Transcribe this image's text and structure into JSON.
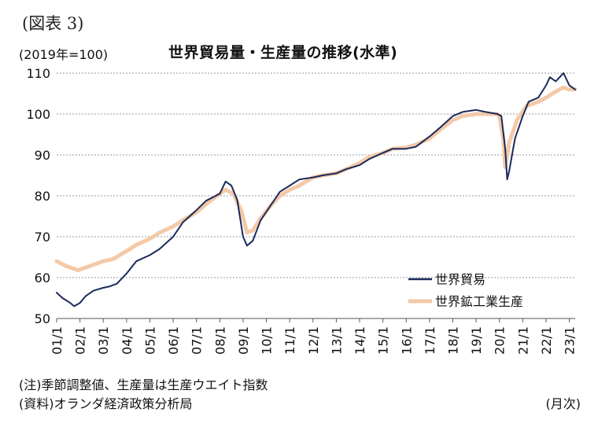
{
  "figure_label": "(図表 3)",
  "unit_label": "(2019年=100)",
  "frequency_label": "(月次)",
  "notes": [
    "(注)季節調整値、生産量は生産ウエイト指数",
    "(資料)オランダ経済政策分析局"
  ],
  "chart_data": {
    "type": "line",
    "title": "世界貿易量・生産量の推移(水準)",
    "ylim": [
      50,
      110
    ],
    "yticks": [
      50,
      60,
      70,
      80,
      90,
      100,
      110
    ],
    "grid": "horizontal-dashed",
    "legend_position": "bottom-right",
    "xlim": [
      "2001-01",
      "2023-04"
    ],
    "x_tick_labels": [
      "01/1",
      "02/1",
      "03/1",
      "04/1",
      "05/1",
      "06/1",
      "07/1",
      "08/1",
      "09/1",
      "10/1",
      "11/1",
      "12/1",
      "13/1",
      "14/1",
      "15/1",
      "16/1",
      "17/1",
      "18/1",
      "19/1",
      "20/1",
      "21/1",
      "22/1",
      "23/1"
    ],
    "series": [
      {
        "name": "世界貿易",
        "color": "#1b2a5c",
        "points": [
          [
            "2001-01",
            56.3
          ],
          [
            "2001-04",
            55
          ],
          [
            "2001-08",
            53.8
          ],
          [
            "2001-10",
            53
          ],
          [
            "2002-01",
            53.8
          ],
          [
            "2002-04",
            55.5
          ],
          [
            "2002-08",
            56.8
          ],
          [
            "2003-01",
            57.5
          ],
          [
            "2003-04",
            57.8
          ],
          [
            "2003-08",
            58.5
          ],
          [
            "2004-01",
            61
          ],
          [
            "2004-06",
            64
          ],
          [
            "2005-01",
            65.5
          ],
          [
            "2005-06",
            67
          ],
          [
            "2006-01",
            70
          ],
          [
            "2006-06",
            73.5
          ],
          [
            "2007-01",
            76.5
          ],
          [
            "2007-06",
            78.8
          ],
          [
            "2008-01",
            80.5
          ],
          [
            "2008-04",
            83.5
          ],
          [
            "2008-07",
            82.5
          ],
          [
            "2008-10",
            79
          ],
          [
            "2009-01",
            70
          ],
          [
            "2009-03",
            67.8
          ],
          [
            "2009-06",
            69
          ],
          [
            "2009-10",
            74
          ],
          [
            "2010-03",
            77.5
          ],
          [
            "2010-08",
            81
          ],
          [
            "2011-01",
            82.5
          ],
          [
            "2011-06",
            84
          ],
          [
            "2012-01",
            84.5
          ],
          [
            "2012-06",
            85
          ],
          [
            "2013-01",
            85.5
          ],
          [
            "2013-06",
            86.5
          ],
          [
            "2014-01",
            87.5
          ],
          [
            "2014-06",
            89
          ],
          [
            "2015-01",
            90.5
          ],
          [
            "2015-06",
            91.5
          ],
          [
            "2016-01",
            91.5
          ],
          [
            "2016-06",
            92
          ],
          [
            "2017-01",
            94.5
          ],
          [
            "2017-06",
            96.5
          ],
          [
            "2018-01",
            99.5
          ],
          [
            "2018-06",
            100.5
          ],
          [
            "2019-01",
            101
          ],
          [
            "2019-06",
            100.5
          ],
          [
            "2019-12",
            100
          ],
          [
            "2020-02",
            99.5
          ],
          [
            "2020-04",
            91.5
          ],
          [
            "2020-05",
            84
          ],
          [
            "2020-06",
            86
          ],
          [
            "2020-09",
            94
          ],
          [
            "2021-01",
            99.5
          ],
          [
            "2021-04",
            103
          ],
          [
            "2021-09",
            104
          ],
          [
            "2022-01",
            107
          ],
          [
            "2022-03",
            109
          ],
          [
            "2022-06",
            108
          ],
          [
            "2022-10",
            110
          ],
          [
            "2023-01",
            107
          ],
          [
            "2023-04",
            106
          ]
        ]
      },
      {
        "name": "世界鉱工業生産",
        "color": "#f3c9a8",
        "points": [
          [
            "2001-01",
            64
          ],
          [
            "2001-06",
            62.8
          ],
          [
            "2001-12",
            61.8
          ],
          [
            "2002-06",
            62.8
          ],
          [
            "2003-01",
            64
          ],
          [
            "2003-06",
            64.5
          ],
          [
            "2004-01",
            66.5
          ],
          [
            "2004-06",
            68
          ],
          [
            "2005-01",
            69.5
          ],
          [
            "2005-06",
            71
          ],
          [
            "2006-01",
            72.5
          ],
          [
            "2006-06",
            74
          ],
          [
            "2007-01",
            76
          ],
          [
            "2007-06",
            78
          ],
          [
            "2008-01",
            80.5
          ],
          [
            "2008-04",
            81.5
          ],
          [
            "2008-08",
            80.5
          ],
          [
            "2008-12",
            76.5
          ],
          [
            "2009-03",
            71
          ],
          [
            "2009-06",
            71.5
          ],
          [
            "2009-10",
            74.5
          ],
          [
            "2010-03",
            77.5
          ],
          [
            "2010-08",
            80
          ],
          [
            "2011-01",
            81.5
          ],
          [
            "2011-06",
            82.5
          ],
          [
            "2012-01",
            84.5
          ],
          [
            "2012-06",
            85
          ],
          [
            "2013-01",
            85.5
          ],
          [
            "2013-06",
            86.5
          ],
          [
            "2014-01",
            88
          ],
          [
            "2014-06",
            89.5
          ],
          [
            "2015-01",
            90.5
          ],
          [
            "2015-06",
            91.5
          ],
          [
            "2016-01",
            91.8
          ],
          [
            "2016-06",
            92.5
          ],
          [
            "2017-01",
            94
          ],
          [
            "2017-06",
            96
          ],
          [
            "2018-01",
            98.5
          ],
          [
            "2018-06",
            99.5
          ],
          [
            "2019-01",
            100
          ],
          [
            "2019-06",
            100
          ],
          [
            "2019-12",
            100
          ],
          [
            "2020-01",
            99.5
          ],
          [
            "2020-03",
            94
          ],
          [
            "2020-04",
            87
          ],
          [
            "2020-06",
            93
          ],
          [
            "2020-10",
            98.5
          ],
          [
            "2021-03",
            102
          ],
          [
            "2021-09",
            103
          ],
          [
            "2022-01",
            104
          ],
          [
            "2022-06",
            105.5
          ],
          [
            "2022-10",
            106.5
          ],
          [
            "2023-01",
            106
          ],
          [
            "2023-04",
            106
          ]
        ]
      }
    ]
  }
}
